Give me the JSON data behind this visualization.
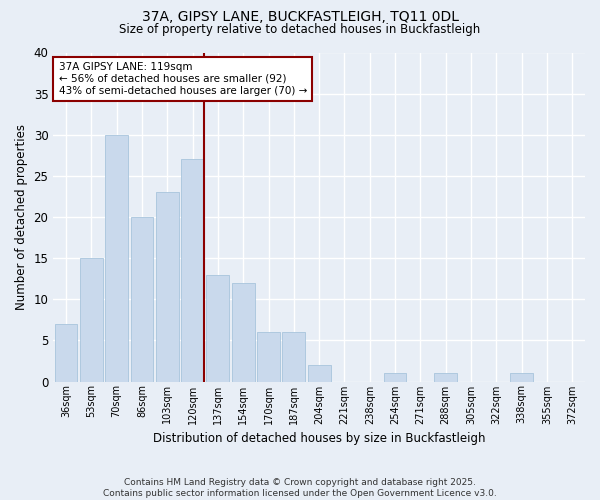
{
  "title1": "37A, GIPSY LANE, BUCKFASTLEIGH, TQ11 0DL",
  "title2": "Size of property relative to detached houses in Buckfastleigh",
  "xlabel": "Distribution of detached houses by size in Buckfastleigh",
  "ylabel": "Number of detached properties",
  "categories": [
    "36sqm",
    "53sqm",
    "70sqm",
    "86sqm",
    "103sqm",
    "120sqm",
    "137sqm",
    "154sqm",
    "170sqm",
    "187sqm",
    "204sqm",
    "221sqm",
    "238sqm",
    "254sqm",
    "271sqm",
    "288sqm",
    "305sqm",
    "322sqm",
    "338sqm",
    "355sqm",
    "372sqm"
  ],
  "values": [
    7,
    15,
    30,
    20,
    23,
    27,
    13,
    12,
    6,
    6,
    2,
    0,
    0,
    1,
    0,
    1,
    0,
    0,
    1,
    0,
    0
  ],
  "bar_color": "#c9d9ec",
  "bar_edge_color": "#a8c4dc",
  "vline_index": 5,
  "vline_color": "#8b0000",
  "annotation_text": "37A GIPSY LANE: 119sqm\n← 56% of detached houses are smaller (92)\n43% of semi-detached houses are larger (70) →",
  "annotation_box_color": "#8b0000",
  "ylim": [
    0,
    40
  ],
  "yticks": [
    0,
    5,
    10,
    15,
    20,
    25,
    30,
    35,
    40
  ],
  "footnote": "Contains HM Land Registry data © Crown copyright and database right 2025.\nContains public sector information licensed under the Open Government Licence v3.0.",
  "background_color": "#e8eef6",
  "plot_bg_color": "#e8eef6",
  "grid_color": "#ffffff"
}
